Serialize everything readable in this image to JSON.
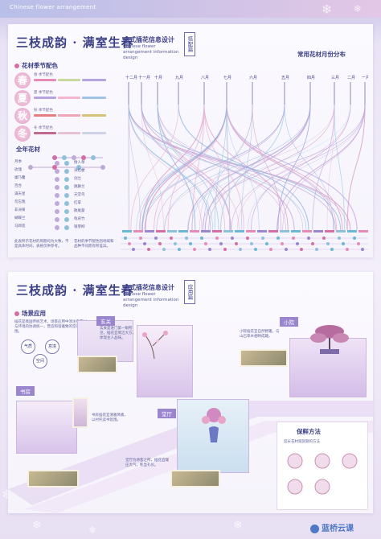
{
  "header": {
    "label": "Chinese flower arrangement"
  },
  "poster1": {
    "title": "三枝成韵 · 满室生春",
    "subtitle_cn": "中式插花信息设计",
    "subtitle_en": "Chinese flower arrangement information design",
    "badge": "搭配篇",
    "section_colors": "花材季节配色",
    "section_year": "全年花材",
    "section_month": "常用花材月份分布",
    "seasons": [
      {
        "char": "春",
        "name": "春 季节配色"
      },
      {
        "char": "夏",
        "name": "夏 季节配色"
      },
      {
        "char": "秋",
        "name": "秋 季节配色"
      },
      {
        "char": "冬",
        "name": "冬 季节配色"
      }
    ],
    "months": [
      "十二月",
      "十一月",
      "十月",
      "九月",
      "八月",
      "七月",
      "六月",
      "五月",
      "四月",
      "三月",
      "二月",
      "一月"
    ],
    "year_flowers_left": [
      "月季",
      "玫瑰",
      "康乃馨",
      "百合",
      "满天星",
      "勿忘我",
      "非洲菊",
      "蝴蝶兰",
      "马蹄莲"
    ],
    "year_flowers_right": [
      "情人草",
      "洋桔梗",
      "剑兰",
      "跳舞兰",
      "天堂鸟",
      "红掌",
      "散尾葵",
      "龟背竹",
      "银芽柳"
    ],
    "note_left": "此表所示花材的周期均为大致，不是具体时间，表格仅供参考。",
    "note_right": "花材的季节配色因地域和品种不同而有所差异。"
  },
  "poster2": {
    "title": "三枝成韵 · 满室生春",
    "subtitle_cn": "中式插花信息设计",
    "subtitle_en": "Chinese flower arrangement information design",
    "badge": "应用篇",
    "section_scene": "场景应用",
    "intro": "插花是我国传统艺术，场景应用中须注重花材与环境的协调统一，营造和谐雅致的空间氛围。",
    "tags": [
      "气质",
      "意境",
      "空间"
    ],
    "rooms": [
      "玄关",
      "小院",
      "书房",
      "堂厅"
    ],
    "room_text_1": "玄关是进门第一眼所见，插花宜简洁大方，体现主人品味。",
    "room_text_2": "小院插花宜自然野趣，与山石草木相映成趣。",
    "room_text_3": "书房插花宜清雅简素，以衬托读书氛围。",
    "room_text_4": "堂厅为待客之所，插花宜端庄大气，彰显礼仪。",
    "section_method": "保鲜方法",
    "method_text": "延长花材观赏期的方法",
    "logo": "蓝桥云课"
  },
  "colors": {
    "primary": "#3b3f86",
    "pink": "#d36fa4",
    "lavender": "#9a86cf",
    "blue": "#8fc0da"
  },
  "icons": [
    "snowflake-icon",
    "flower-dot-icon",
    "logo-icon"
  ]
}
